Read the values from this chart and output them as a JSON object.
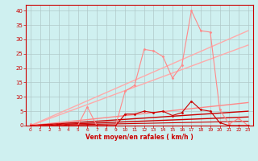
{
  "title": "",
  "xlabel": "Vent moyen/en rafales ( km/h )",
  "ylabel": "",
  "xlim": [
    -0.5,
    23.5
  ],
  "ylim": [
    0,
    42
  ],
  "yticks": [
    0,
    5,
    10,
    15,
    20,
    25,
    30,
    35,
    40
  ],
  "xticks": [
    0,
    1,
    2,
    3,
    4,
    5,
    6,
    7,
    8,
    9,
    10,
    11,
    12,
    13,
    14,
    15,
    16,
    17,
    18,
    19,
    20,
    21,
    22,
    23
  ],
  "bg_color": "#cff0f0",
  "grid_color": "#b0c8c8",
  "series_data": [
    {
      "x": [
        0,
        1,
        2,
        3,
        4,
        5,
        6,
        7,
        8,
        9,
        10,
        11,
        12,
        13,
        14,
        15,
        16,
        17,
        18,
        19,
        20,
        21,
        22,
        23
      ],
      "y": [
        0.5,
        0,
        0,
        0.5,
        0,
        0,
        6.5,
        0,
        0,
        0,
        12,
        14,
        26.5,
        26,
        24,
        16.5,
        21,
        40,
        33,
        32.5,
        5.5,
        0.5,
        2.5,
        0
      ],
      "color": "#ff8888",
      "lw": 0.8,
      "marker": "D",
      "ms": 1.5,
      "zorder": 3
    },
    {
      "x": [
        0,
        1,
        2,
        3,
        4,
        5,
        6,
        7,
        8,
        9,
        10,
        11,
        12,
        13,
        14,
        15,
        16,
        17,
        18,
        19,
        20,
        21,
        22,
        23
      ],
      "y": [
        0,
        0,
        0,
        0.5,
        0,
        0,
        0,
        0,
        0,
        0,
        4,
        4,
        5,
        4.5,
        5,
        3.5,
        4.5,
        8.5,
        5.5,
        5,
        1,
        0,
        0,
        0
      ],
      "color": "#cc0000",
      "lw": 0.8,
      "marker": "D",
      "ms": 1.5,
      "zorder": 3
    },
    {
      "x": [
        0,
        23
      ],
      "y": [
        0,
        33
      ],
      "color": "#ffaaaa",
      "lw": 1.0,
      "marker": null,
      "ms": 0,
      "zorder": 2
    },
    {
      "x": [
        0,
        23
      ],
      "y": [
        0,
        28
      ],
      "color": "#ffaaaa",
      "lw": 1.0,
      "marker": null,
      "ms": 0,
      "zorder": 2
    },
    {
      "x": [
        0,
        23
      ],
      "y": [
        0,
        8
      ],
      "color": "#ff8888",
      "lw": 1.0,
      "marker": null,
      "ms": 0,
      "zorder": 2
    },
    {
      "x": [
        0,
        23
      ],
      "y": [
        0,
        5
      ],
      "color": "#cc0000",
      "lw": 1.0,
      "marker": null,
      "ms": 0,
      "zorder": 2
    },
    {
      "x": [
        0,
        23
      ],
      "y": [
        0,
        3
      ],
      "color": "#cc0000",
      "lw": 1.0,
      "marker": null,
      "ms": 0,
      "zorder": 2
    },
    {
      "x": [
        0,
        23
      ],
      "y": [
        0,
        1.5
      ],
      "color": "#cc0000",
      "lw": 0.8,
      "marker": null,
      "ms": 0,
      "zorder": 2
    }
  ]
}
